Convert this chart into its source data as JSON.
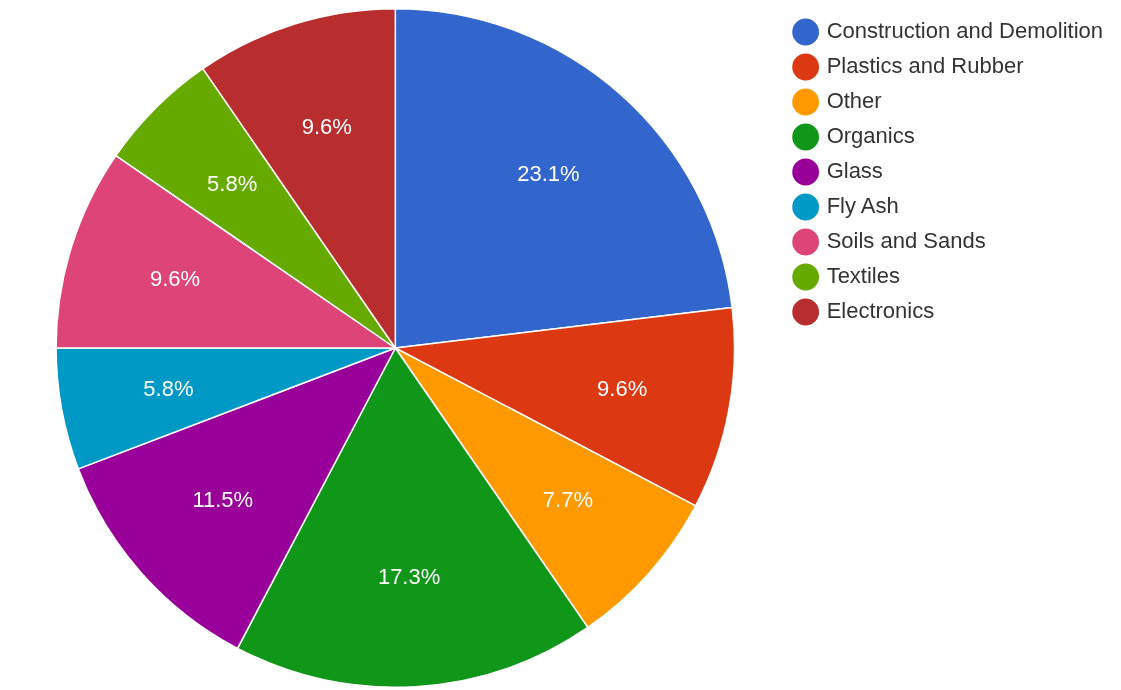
{
  "chart_data": {
    "type": "pie",
    "categories": [
      "Construction and Demolition",
      "Plastics and Rubber",
      "Other",
      "Organics",
      "Glass",
      "Fly Ash",
      "Soils and Sands",
      "Textiles",
      "Electronics"
    ],
    "values": [
      23.1,
      9.6,
      7.7,
      17.3,
      11.5,
      5.8,
      9.6,
      5.8,
      9.6
    ],
    "value_labels": [
      "23.1%",
      "9.6%",
      "7.7%",
      "17.3%",
      "11.5%",
      "5.8%",
      "9.6%",
      "5.8%",
      "9.6%"
    ],
    "colors": [
      "#3366cc",
      "#dc3912",
      "#ff9900",
      "#109618",
      "#990099",
      "#0099c6",
      "#dd4477",
      "#66aa00",
      "#b82e2e"
    ],
    "legend": "top right"
  }
}
